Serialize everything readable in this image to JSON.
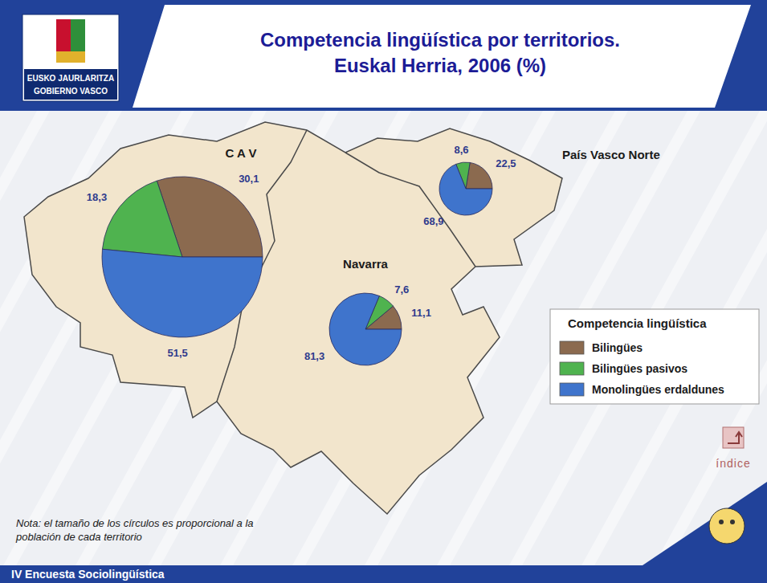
{
  "page": {
    "title": [
      "Competencia lingüística por territorios.",
      "Euskal Herria, 2006 (%)"
    ],
    "logo": [
      "EUSKO JAURLARITZA",
      "GOBIERNO VASCO"
    ],
    "legend_title": "Competencia lingüística",
    "note": "Nota: el tamaño de los círculos es proporcional a la población de cada territorio",
    "footer": "IV Encuesta Sociolingüística",
    "index_label": "índice"
  },
  "chart_data": [
    {
      "type": "pie",
      "title": "C A V",
      "categories": [
        "Bilingües",
        "Bilingües pasivos",
        "Monolingües erdaldunes"
      ],
      "values": [
        30.1,
        18.3,
        51.5
      ],
      "value_labels": [
        "30,1",
        "18,3",
        "51,5"
      ],
      "colors": [
        "#8b6a4f",
        "#4fb34f",
        "#3f74cc"
      ],
      "data_labels": true,
      "legend": "right"
    },
    {
      "type": "pie",
      "title": "Navarra",
      "categories": [
        "Bilingües",
        "Bilingües pasivos",
        "Monolingües erdaldunes"
      ],
      "values": [
        11.1,
        7.6,
        81.3
      ],
      "value_labels": [
        "11,1",
        "7,6",
        "81,3"
      ],
      "colors": [
        "#8b6a4f",
        "#4fb34f",
        "#3f74cc"
      ],
      "data_labels": true
    },
    {
      "type": "pie",
      "title": "País Vasco Norte",
      "categories": [
        "Bilingües",
        "Bilingües pasivos",
        "Monolingües erdaldunes"
      ],
      "values": [
        22.5,
        8.6,
        68.9
      ],
      "value_labels": [
        "22,5",
        "8,6",
        "68,9"
      ],
      "colors": [
        "#8b6a4f",
        "#4fb34f",
        "#3f74cc"
      ],
      "data_labels": true
    }
  ]
}
